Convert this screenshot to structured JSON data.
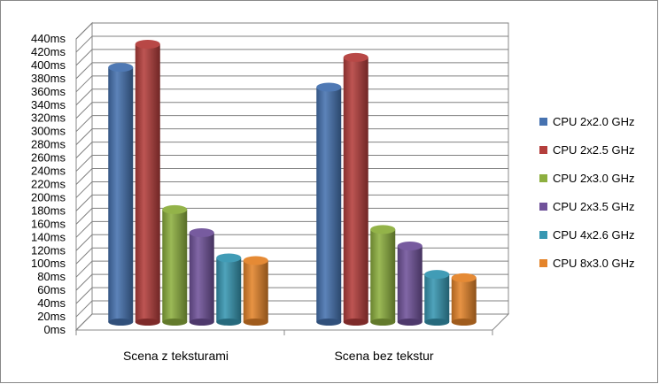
{
  "chart_data": {
    "type": "bar",
    "title": "",
    "xlabel": "",
    "ylabel": "",
    "ylim": [
      0,
      440
    ],
    "ytick_step": 20,
    "ytick_suffix": "ms",
    "grid": true,
    "three_d": true,
    "legend_position": "right",
    "categories": [
      "Scena z teksturami",
      "Scena bez tekstur"
    ],
    "series": [
      {
        "name": "CPU 2x2.0 GHz",
        "color": "#4672B0",
        "values": [
          385,
          355
        ]
      },
      {
        "name": "CPU 2x2.5 GHz",
        "color": "#B43E3C",
        "values": [
          420,
          400
        ]
      },
      {
        "name": "CPU 2x3.0 GHz",
        "color": "#8DAF3F",
        "values": [
          170,
          140
        ]
      },
      {
        "name": "CPU 2x3.5 GHz",
        "color": "#70529A",
        "values": [
          135,
          115
        ]
      },
      {
        "name": "CPU 4x2.6 GHz",
        "color": "#3797B2",
        "values": [
          97,
          72
        ]
      },
      {
        "name": "CPU 8x3.0 GHz",
        "color": "#E4842A",
        "values": [
          93,
          67
        ]
      }
    ]
  }
}
